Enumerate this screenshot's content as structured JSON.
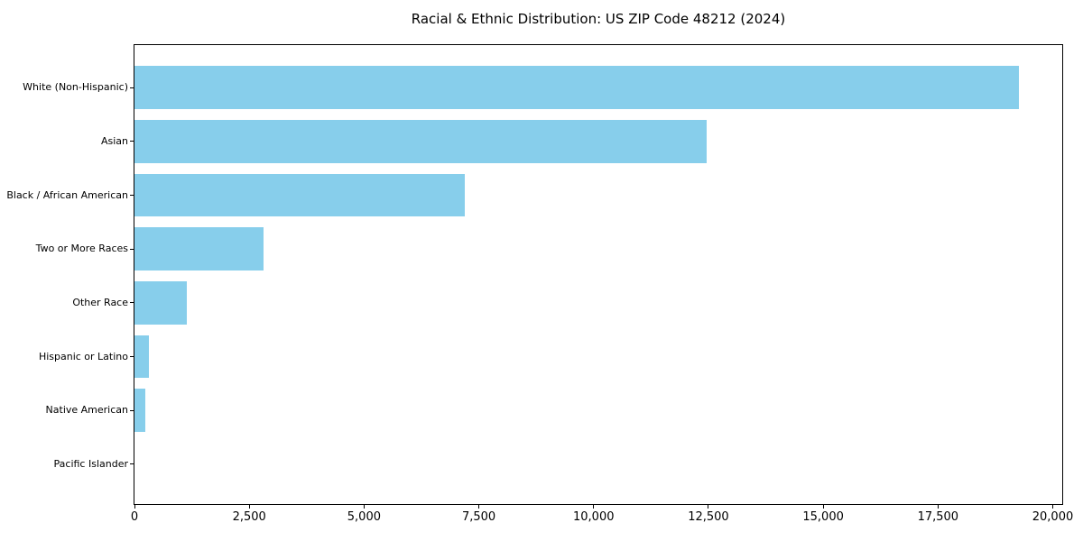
{
  "figure": {
    "background": "#ffffff"
  },
  "chart_data": {
    "type": "bar",
    "orientation": "horizontal",
    "title": "Racial & Ethnic Distribution: US ZIP Code 48212 (2024)",
    "categories": [
      "White (Non-Hispanic)",
      "Asian",
      "Black / African American",
      "Two or More Races",
      "Other Race",
      "Hispanic or Latino",
      "Native American",
      "Pacific Islander"
    ],
    "values": [
      19270,
      12460,
      7190,
      2810,
      1140,
      320,
      240,
      0
    ],
    "xlabel": "",
    "ylabel": "",
    "xlim": [
      0,
      20200
    ],
    "x_ticks": [
      0,
      2500,
      5000,
      7500,
      10000,
      12500,
      15000,
      17500,
      20000
    ],
    "x_tick_labels": [
      "0",
      "2,500",
      "5,000",
      "7,500",
      "10,000",
      "12,500",
      "15,000",
      "17,500",
      "20,000"
    ],
    "bar_color": "#87CEEB",
    "axis_color": "#000000",
    "grid": false,
    "legend_position": "none",
    "value_labels_shown": false
  }
}
